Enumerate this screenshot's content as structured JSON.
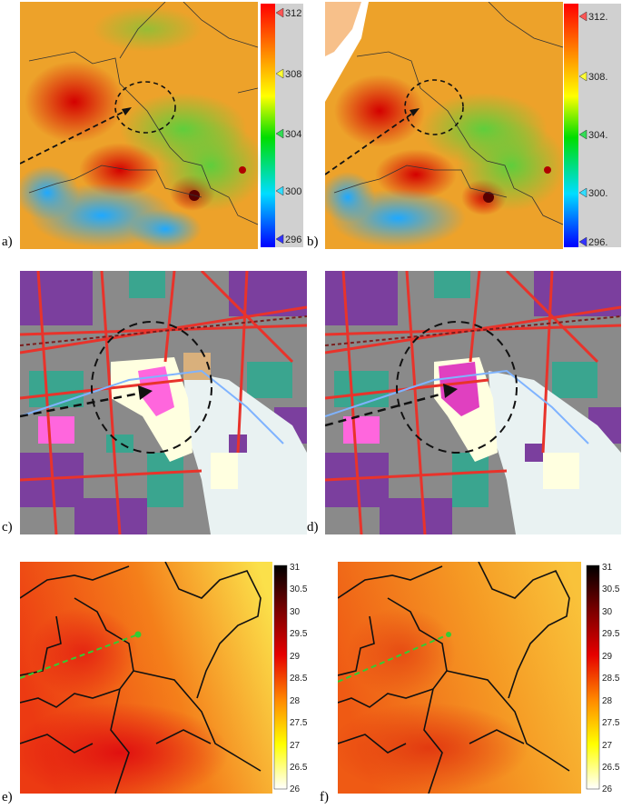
{
  "panels": [
    {
      "id": "a",
      "label": "a)",
      "type": "temperature-map",
      "legend": {
        "ticks": [
          "312",
          "308",
          "304",
          "300",
          "296"
        ]
      }
    },
    {
      "id": "b",
      "label": "b)",
      "type": "temperature-map",
      "legend": {
        "ticks": [
          "312.",
          "308.",
          "304.",
          "300.",
          "296."
        ]
      }
    },
    {
      "id": "c",
      "label": "c)",
      "type": "land-use-map"
    },
    {
      "id": "d",
      "label": "d)",
      "type": "land-use-map"
    },
    {
      "id": "e",
      "label": "e)",
      "type": "temperature-map",
      "legend": {
        "ticks": [
          "31",
          "30.5",
          "30",
          "29.5",
          "29",
          "28.5",
          "28",
          "27.5",
          "27",
          "26.5",
          "26"
        ]
      }
    },
    {
      "id": "f",
      "label": "f)",
      "type": "temperature-map",
      "legend": {
        "ticks": [
          "31",
          "30.5",
          "30",
          "29.5",
          "29",
          "28.5",
          "28",
          "27.5",
          "27",
          "26.5",
          "26"
        ]
      }
    }
  ],
  "colors": {
    "rainbow": [
      "#ff0000",
      "#ff8800",
      "#ffff00",
      "#00dd00",
      "#00ddff",
      "#0000ff"
    ],
    "heat": [
      "#000000",
      "#7a0000",
      "#e60000",
      "#ff6600",
      "#ffcc00",
      "#ffff66",
      "#ffffff"
    ],
    "landuse": [
      "#7b3f9e",
      "#808080",
      "#3aa58f",
      "#e8332b",
      "#ff66dd",
      "#ffffe0",
      "#e9f2f2",
      "#d9b07c"
    ]
  }
}
